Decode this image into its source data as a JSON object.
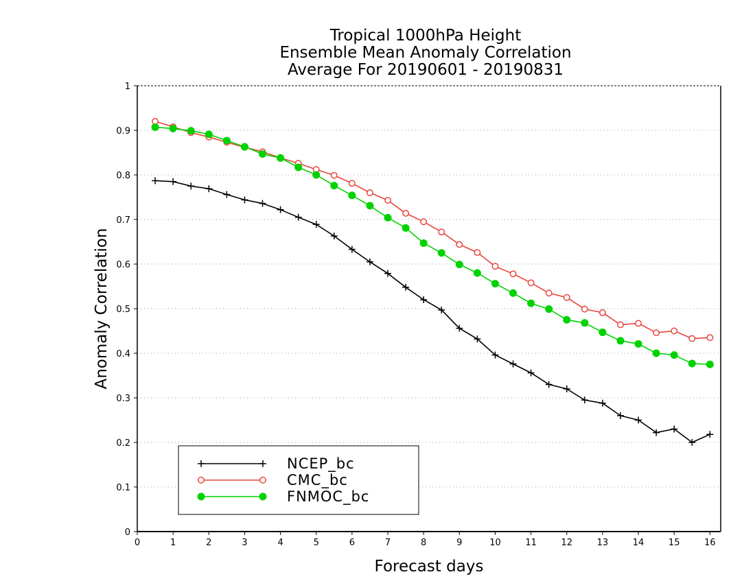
{
  "chart_data": {
    "type": "line",
    "title": [
      "Tropical 1000hPa Height",
      "Ensemble Mean Anomaly Correlation",
      "Average For 20190601 - 20190831"
    ],
    "xlabel": "Forecast days",
    "ylabel": "Anomaly Correlation",
    "xlim": [
      0,
      16.3
    ],
    "ylim": [
      0,
      1
    ],
    "xticks": [
      0,
      1,
      2,
      3,
      4,
      5,
      6,
      7,
      8,
      9,
      10,
      11,
      12,
      13,
      14,
      15,
      16
    ],
    "yticks": [
      0,
      0.1,
      0.2,
      0.3,
      0.4,
      0.5,
      0.6,
      0.7,
      0.8,
      0.9,
      1
    ],
    "grid": true,
    "legend_position": "bottom-left",
    "x": [
      0.5,
      1,
      1.5,
      2,
      2.5,
      3,
      3.5,
      4,
      4.5,
      5,
      5.5,
      6,
      6.5,
      7,
      7.5,
      8,
      8.5,
      9,
      9.5,
      10,
      10.5,
      11,
      11.5,
      12,
      12.5,
      13,
      13.5,
      14,
      14.5,
      15,
      15.5,
      16
    ],
    "series": [
      {
        "name": "NCEP_bc",
        "color": "#000000",
        "marker": "plus",
        "values": [
          0.787,
          0.785,
          0.775,
          0.769,
          0.756,
          0.744,
          0.736,
          0.722,
          0.705,
          0.689,
          0.663,
          0.633,
          0.605,
          0.579,
          0.548,
          0.52,
          0.497,
          0.456,
          0.432,
          0.396,
          0.376,
          0.356,
          0.33,
          0.32,
          0.295,
          0.288,
          0.26,
          0.25,
          0.222,
          0.23,
          0.2,
          0.218
        ]
      },
      {
        "name": "CMC_bc",
        "color": "#e8453c",
        "marker": "open-circle",
        "values": [
          0.92,
          0.908,
          0.895,
          0.885,
          0.873,
          0.862,
          0.852,
          0.838,
          0.826,
          0.812,
          0.799,
          0.781,
          0.76,
          0.743,
          0.714,
          0.695,
          0.672,
          0.644,
          0.626,
          0.595,
          0.578,
          0.558,
          0.535,
          0.525,
          0.499,
          0.491,
          0.464,
          0.467,
          0.446,
          0.45,
          0.433,
          0.435
        ]
      },
      {
        "name": "FNMOC_bc",
        "color": "#00d200",
        "marker": "filled-circle",
        "values": [
          0.907,
          0.904,
          0.899,
          0.891,
          0.877,
          0.863,
          0.847,
          0.838,
          0.817,
          0.8,
          0.776,
          0.754,
          0.731,
          0.704,
          0.681,
          0.647,
          0.625,
          0.599,
          0.58,
          0.556,
          0.535,
          0.512,
          0.499,
          0.475,
          0.468,
          0.447,
          0.428,
          0.421,
          0.4,
          0.396,
          0.377,
          0.375
        ]
      }
    ]
  }
}
